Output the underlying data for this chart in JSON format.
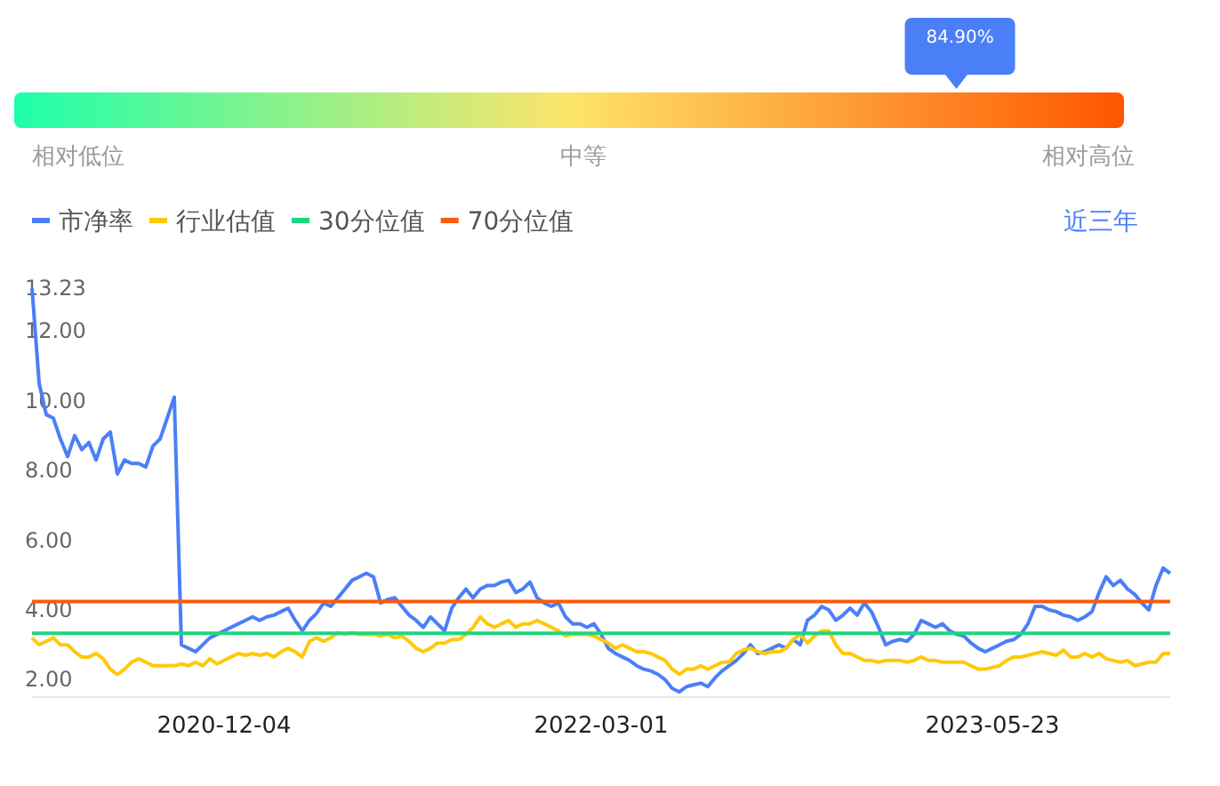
{
  "chart_data": [
    {
      "type": "other",
      "annotations": [
        "相对低位",
        "中等",
        "相对高位"
      ],
      "values": [
        84.9
      ],
      "value_labels": [
        "84.90%"
      ]
    },
    {
      "type": "line",
      "legend": "top left",
      "annotations": [
        "近三年"
      ],
      "categories": [
        null,
        null,
        null,
        null,
        null,
        null,
        null,
        null,
        null,
        null,
        null,
        null,
        null,
        null,
        null,
        null,
        null,
        null,
        null,
        null,
        null,
        null,
        null,
        null,
        null,
        null,
        null,
        "2020-12-04",
        null,
        null,
        null,
        null,
        null,
        null,
        null,
        null,
        null,
        null,
        null,
        null,
        null,
        null,
        null,
        null,
        null,
        null,
        null,
        null,
        null,
        null,
        null,
        null,
        null,
        null,
        null,
        null,
        null,
        null,
        null,
        null,
        null,
        null,
        null,
        null,
        null,
        null,
        null,
        null,
        null,
        null,
        null,
        null,
        null,
        null,
        null,
        null,
        null,
        null,
        null,
        null,
        "2022-03-01",
        null,
        null,
        null,
        null,
        null,
        null,
        null,
        null,
        null,
        null,
        null,
        null,
        null,
        null,
        null,
        null,
        null,
        null,
        null,
        null,
        null,
        null,
        null,
        null,
        null,
        null,
        null,
        null,
        null,
        null,
        null,
        null,
        null,
        null,
        null,
        null,
        null,
        null,
        null,
        null,
        null,
        null,
        null,
        null,
        null,
        null,
        null,
        null,
        null,
        null,
        null,
        null,
        null,
        null,
        "2023-05-23",
        null,
        null,
        null,
        null,
        null,
        null,
        null,
        null,
        null,
        null,
        null,
        null,
        null,
        null,
        null,
        null,
        null,
        null,
        null,
        null,
        null,
        null,
        null,
        null,
        null
      ],
      "ylim": [
        1.5,
        13.23
      ],
      "yticks": [
        {
          "value": 2,
          "label": "2.00"
        },
        {
          "value": 4,
          "label": "4.00"
        },
        {
          "value": 6,
          "label": "6.00"
        },
        {
          "value": 8,
          "label": "8.00"
        },
        {
          "value": 10,
          "label": "10.00"
        },
        {
          "value": 12,
          "label": "12.00"
        },
        {
          "value": 13.23,
          "label": "13.23"
        }
      ],
      "series": [
        {
          "name": "市净率",
          "color": "#4a7ff7",
          "values": [
            13.23,
            10.5,
            9.6,
            9.5,
            8.9,
            8.4,
            9.0,
            8.6,
            8.8,
            8.3,
            8.9,
            9.1,
            7.9,
            8.3,
            8.2,
            8.2,
            8.1,
            8.7,
            8.9,
            9.5,
            10.1,
            3.0,
            2.9,
            2.8,
            3.0,
            3.2,
            3.3,
            3.4,
            3.5,
            3.6,
            3.7,
            3.8,
            3.7,
            3.8,
            3.85,
            3.95,
            4.05,
            3.7,
            3.4,
            3.7,
            3.9,
            4.2,
            4.1,
            4.35,
            4.6,
            4.85,
            4.95,
            5.05,
            4.95,
            4.2,
            4.3,
            4.35,
            4.1,
            3.85,
            3.7,
            3.5,
            3.8,
            3.6,
            3.4,
            4.05,
            4.35,
            4.6,
            4.35,
            4.6,
            4.7,
            4.7,
            4.8,
            4.85,
            4.5,
            4.6,
            4.8,
            4.35,
            4.2,
            4.1,
            4.2,
            3.8,
            3.6,
            3.6,
            3.5,
            3.6,
            3.3,
            2.9,
            2.75,
            2.65,
            2.55,
            2.4,
            2.3,
            2.25,
            2.15,
            2.0,
            1.75,
            1.65,
            1.8,
            1.85,
            1.9,
            1.8,
            2.05,
            2.25,
            2.4,
            2.55,
            2.75,
            3.0,
            2.75,
            2.8,
            2.9,
            3.0,
            2.9,
            3.15,
            3.0,
            3.7,
            3.85,
            4.1,
            4.0,
            3.7,
            3.85,
            4.05,
            3.85,
            4.2,
            3.95,
            3.5,
            3.0,
            3.1,
            3.15,
            3.1,
            3.3,
            3.7,
            3.6,
            3.5,
            3.6,
            3.4,
            3.3,
            3.25,
            3.05,
            2.9,
            2.8,
            2.9,
            3.0,
            3.1,
            3.15,
            3.3,
            3.6,
            4.1,
            4.1,
            4.0,
            3.95,
            3.85,
            3.8,
            3.7,
            3.8,
            3.95,
            4.5,
            4.95,
            4.7,
            4.85,
            4.6,
            4.45,
            4.2,
            4.0,
            4.7,
            5.2,
            5.05
          ]
        },
        {
          "name": "行业估值",
          "color": "#ffc90a",
          "values": [
            3.2,
            3.0,
            3.1,
            3.2,
            3.0,
            3.0,
            2.8,
            2.65,
            2.65,
            2.75,
            2.6,
            2.3,
            2.15,
            2.3,
            2.5,
            2.6,
            2.5,
            2.4,
            2.4,
            2.4,
            2.4,
            2.45,
            2.4,
            2.5,
            2.4,
            2.6,
            2.45,
            2.55,
            2.65,
            2.75,
            2.7,
            2.75,
            2.7,
            2.75,
            2.65,
            2.8,
            2.9,
            2.8,
            2.65,
            3.1,
            3.2,
            3.1,
            3.2,
            3.35,
            3.3,
            3.35,
            3.3,
            3.3,
            3.3,
            3.25,
            3.3,
            3.2,
            3.25,
            3.1,
            2.9,
            2.8,
            2.9,
            3.05,
            3.05,
            3.15,
            3.15,
            3.3,
            3.5,
            3.8,
            3.6,
            3.5,
            3.6,
            3.7,
            3.5,
            3.6,
            3.6,
            3.7,
            3.6,
            3.5,
            3.4,
            3.25,
            3.3,
            3.3,
            3.3,
            3.25,
            3.15,
            3.05,
            2.9,
            3.0,
            2.9,
            2.8,
            2.8,
            2.75,
            2.65,
            2.55,
            2.3,
            2.15,
            2.3,
            2.3,
            2.4,
            2.3,
            2.4,
            2.5,
            2.5,
            2.75,
            2.85,
            2.9,
            2.8,
            2.75,
            2.8,
            2.8,
            2.9,
            3.15,
            3.3,
            3.05,
            3.25,
            3.4,
            3.4,
            3.0,
            2.75,
            2.75,
            2.65,
            2.55,
            2.55,
            2.5,
            2.55,
            2.55,
            2.55,
            2.5,
            2.55,
            2.65,
            2.55,
            2.55,
            2.5,
            2.5,
            2.5,
            2.5,
            2.4,
            2.3,
            2.3,
            2.35,
            2.4,
            2.55,
            2.65,
            2.65,
            2.7,
            2.75,
            2.8,
            2.75,
            2.7,
            2.85,
            2.65,
            2.65,
            2.75,
            2.65,
            2.75,
            2.6,
            2.55,
            2.5,
            2.55,
            2.4,
            2.45,
            2.5,
            2.5,
            2.75,
            2.75
          ]
        }
      ],
      "ref_lines": [
        {
          "axis": "y",
          "value": 3.33,
          "label": "30分位值",
          "color": "#1fd67f"
        },
        {
          "axis": "y",
          "value": 4.24,
          "label": "70分位值",
          "color": "#ff5a0a"
        }
      ]
    }
  ]
}
